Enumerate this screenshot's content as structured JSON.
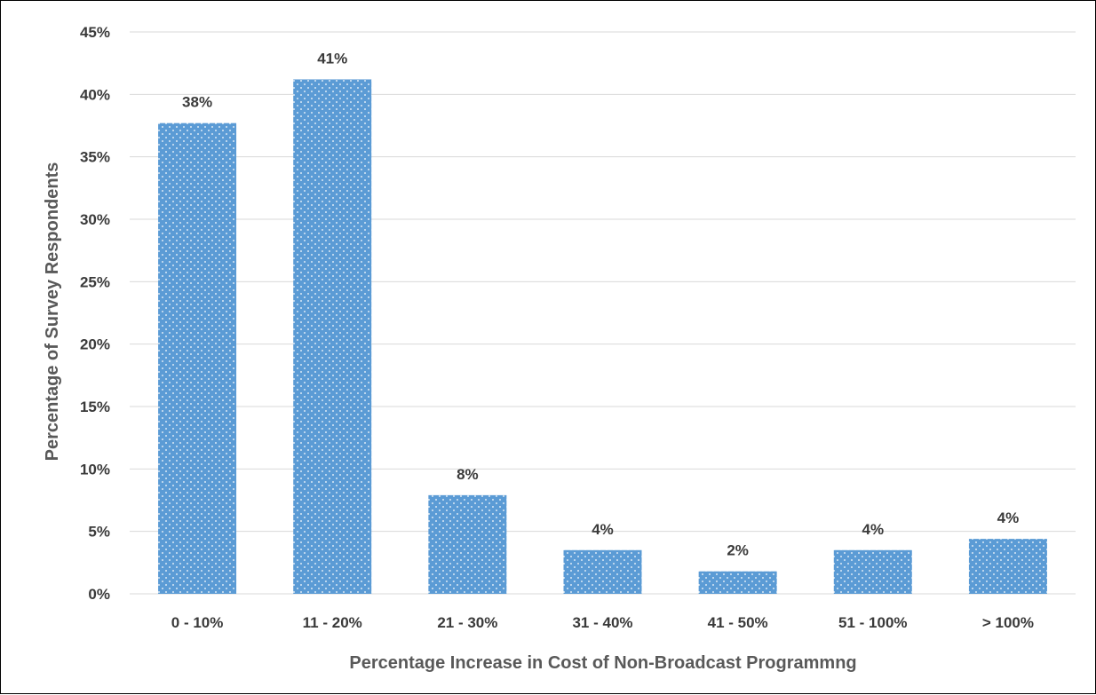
{
  "chart_data": {
    "type": "bar",
    "title": "",
    "xlabel": "Percentage Increase in Cost of Non-Broadcast Programmng",
    "ylabel": "Percentage of Survey Respondents",
    "categories": [
      "0 - 10%",
      "11 - 20%",
      "21 - 30%",
      "31 - 40%",
      "41 - 50%",
      "51 - 100%",
      "> 100%"
    ],
    "values": [
      37.7,
      41.2,
      7.9,
      3.5,
      1.8,
      3.5,
      4.4
    ],
    "data_labels": [
      "38%",
      "41%",
      "8%",
      "4%",
      "2%",
      "4%",
      "4%"
    ],
    "ylim": [
      0,
      45
    ],
    "yticks": [
      0,
      5,
      10,
      15,
      20,
      25,
      30,
      35,
      40,
      45
    ],
    "ytick_labels": [
      "0%",
      "5%",
      "10%",
      "15%",
      "20%",
      "25%",
      "30%",
      "35%",
      "40%",
      "45%"
    ],
    "grid": true,
    "legend": "none",
    "bar_color": "#5b9bd5",
    "bar_pattern": "white dots",
    "grid_color": "#d9d9d9",
    "text_color": "#3a3a3a"
  }
}
